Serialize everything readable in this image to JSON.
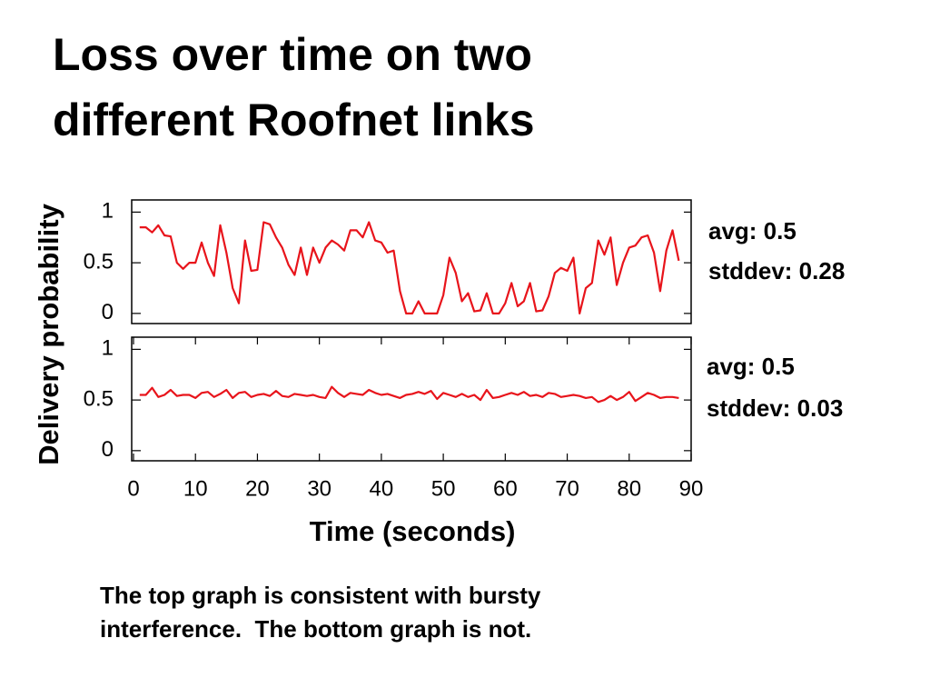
{
  "slide": {
    "title": [
      "Loss over time on two",
      "different Roofnet links"
    ],
    "caption": [
      "The top graph is consistent with bursty",
      "interference.  The bottom graph is not."
    ]
  },
  "chart_data": [
    {
      "type": "line",
      "color": "#e8141b",
      "ylabel": "Delivery probability",
      "x": [
        1,
        2,
        3,
        4,
        5,
        6,
        7,
        8,
        9,
        10,
        11,
        12,
        13,
        14,
        15,
        16,
        17,
        18,
        19,
        20,
        21,
        22,
        23,
        24,
        25,
        26,
        27,
        28,
        29,
        30,
        31,
        32,
        33,
        34,
        35,
        36,
        37,
        38,
        39,
        40,
        41,
        42,
        43,
        44,
        45,
        46,
        47,
        48,
        49,
        50,
        51,
        52,
        53,
        54,
        55,
        56,
        57,
        58,
        59,
        60,
        61,
        62,
        63,
        64,
        65,
        66,
        67,
        68,
        69,
        70,
        71,
        72,
        73,
        74,
        75,
        76,
        77,
        78,
        79,
        80,
        81,
        82,
        83,
        84,
        85,
        86,
        87,
        88
      ],
      "values": [
        0.85,
        0.85,
        0.8,
        0.87,
        0.77,
        0.76,
        0.5,
        0.44,
        0.5,
        0.5,
        0.7,
        0.5,
        0.37,
        0.87,
        0.6,
        0.25,
        0.1,
        0.72,
        0.42,
        0.43,
        0.9,
        0.88,
        0.75,
        0.65,
        0.48,
        0.38,
        0.65,
        0.38,
        0.65,
        0.5,
        0.65,
        0.72,
        0.68,
        0.62,
        0.82,
        0.82,
        0.75,
        0.9,
        0.72,
        0.7,
        0.6,
        0.62,
        0.22,
        0.0,
        0.0,
        0.12,
        0.0,
        0.0,
        0.0,
        0.18,
        0.55,
        0.4,
        0.12,
        0.2,
        0.02,
        0.03,
        0.2,
        0.0,
        0.0,
        0.1,
        0.3,
        0.07,
        0.12,
        0.3,
        0.02,
        0.03,
        0.17,
        0.4,
        0.45,
        0.42,
        0.55,
        0.0,
        0.25,
        0.3,
        0.72,
        0.58,
        0.75,
        0.28,
        0.5,
        0.65,
        0.67,
        0.75,
        0.77,
        0.6,
        0.22,
        0.62,
        0.82,
        0.52
      ],
      "xlim": [
        0,
        90
      ],
      "ylim": [
        -0.1,
        1.12
      ],
      "yticks": [
        0,
        0.5,
        1
      ],
      "annotations": [
        "avg: 0.5",
        "stddev: 0.28"
      ]
    },
    {
      "type": "line",
      "color": "#e8141b",
      "xlabel": "Time (seconds)",
      "x": [
        1,
        2,
        3,
        4,
        5,
        6,
        7,
        8,
        9,
        10,
        11,
        12,
        13,
        14,
        15,
        16,
        17,
        18,
        19,
        20,
        21,
        22,
        23,
        24,
        25,
        26,
        27,
        28,
        29,
        30,
        31,
        32,
        33,
        34,
        35,
        36,
        37,
        38,
        39,
        40,
        41,
        42,
        43,
        44,
        45,
        46,
        47,
        48,
        49,
        50,
        51,
        52,
        53,
        54,
        55,
        56,
        57,
        58,
        59,
        60,
        61,
        62,
        63,
        64,
        65,
        66,
        67,
        68,
        69,
        70,
        71,
        72,
        73,
        74,
        75,
        76,
        77,
        78,
        79,
        80,
        81,
        82,
        83,
        84,
        85,
        86,
        87,
        88
      ],
      "values": [
        0.55,
        0.55,
        0.62,
        0.53,
        0.55,
        0.6,
        0.54,
        0.55,
        0.55,
        0.52,
        0.57,
        0.58,
        0.53,
        0.56,
        0.6,
        0.52,
        0.57,
        0.58,
        0.53,
        0.55,
        0.56,
        0.54,
        0.59,
        0.54,
        0.53,
        0.56,
        0.55,
        0.54,
        0.55,
        0.53,
        0.52,
        0.63,
        0.57,
        0.53,
        0.57,
        0.56,
        0.55,
        0.6,
        0.57,
        0.55,
        0.56,
        0.54,
        0.52,
        0.55,
        0.56,
        0.58,
        0.56,
        0.59,
        0.51,
        0.57,
        0.55,
        0.53,
        0.56,
        0.53,
        0.55,
        0.5,
        0.6,
        0.52,
        0.53,
        0.55,
        0.57,
        0.55,
        0.58,
        0.54,
        0.55,
        0.53,
        0.57,
        0.56,
        0.53,
        0.54,
        0.55,
        0.54,
        0.52,
        0.53,
        0.48,
        0.5,
        0.54,
        0.5,
        0.53,
        0.58,
        0.49,
        0.53,
        0.57,
        0.55,
        0.52,
        0.53,
        0.53,
        0.52
      ],
      "xlim": [
        0,
        90
      ],
      "ylim": [
        -0.1,
        1.12
      ],
      "yticks": [
        0,
        0.5,
        1
      ],
      "xticks": [
        0,
        10,
        20,
        30,
        40,
        50,
        60,
        70,
        80,
        90
      ],
      "annotations": [
        "avg: 0.5",
        "stddev: 0.03"
      ]
    }
  ]
}
